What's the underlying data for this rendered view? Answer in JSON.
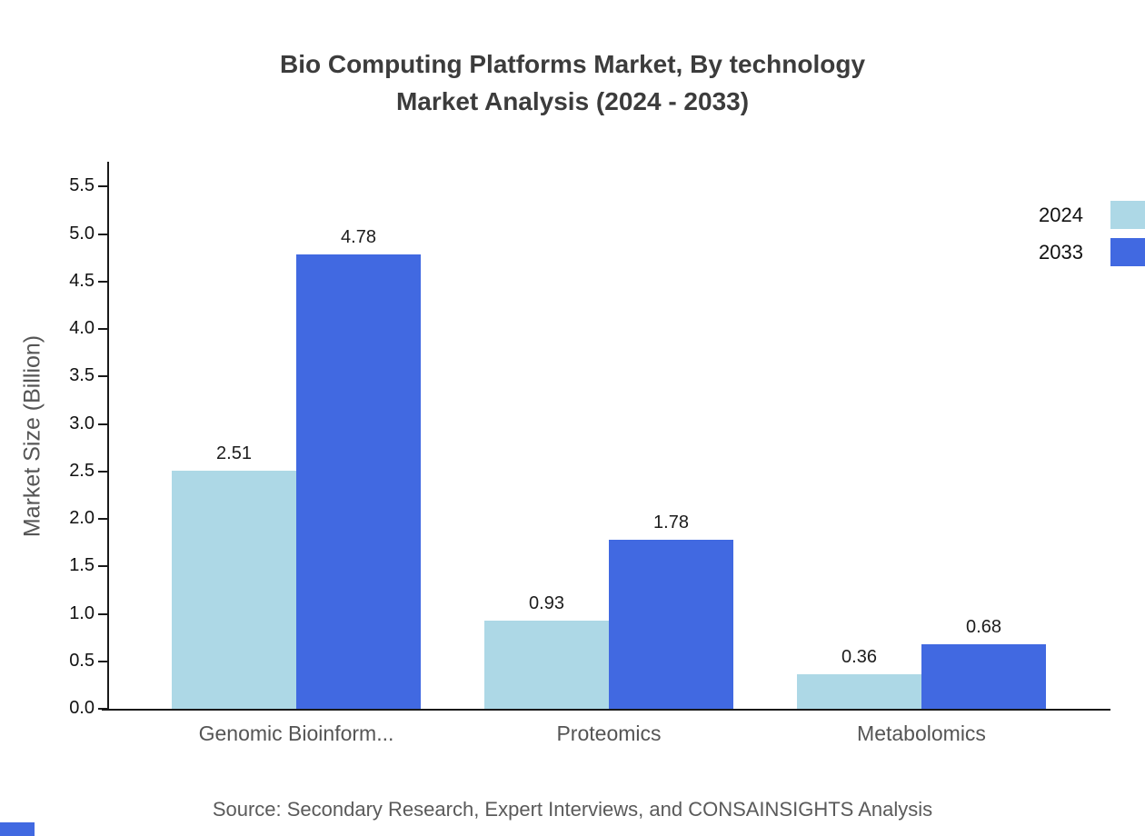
{
  "title_line1": "Bio Computing Platforms Market, By technology",
  "title_line2": "Market Analysis (2024 - 2033)",
  "source": "Source: Secondary Research, Expert Interviews, and CONSAINSIGHTS Analysis",
  "colors": {
    "series_2024": "#ADD8E6",
    "series_2033": "#4169E1"
  },
  "chart_data": {
    "type": "bar",
    "title": "Bio Computing Platforms Market, By technology Market Analysis (2024 - 2033)",
    "categories": [
      "Genomic Bioinform...",
      "Proteomics",
      "Metabolomics"
    ],
    "series": [
      {
        "name": "2024",
        "color": "#ADD8E6",
        "values": [
          2.51,
          0.93,
          0.36
        ]
      },
      {
        "name": "2033",
        "color": "#4169E1",
        "values": [
          4.78,
          1.78,
          0.68
        ]
      }
    ],
    "xlabel": "",
    "ylabel": "Market Size (Billion)",
    "ylim": [
      0,
      5.75
    ],
    "yticks": [
      0.0,
      0.5,
      1.0,
      1.5,
      2.0,
      2.5,
      3.0,
      3.5,
      4.0,
      4.5,
      5.0,
      5.5
    ],
    "grid": false,
    "legend_position": "top-right",
    "bar_value_labels": true
  }
}
